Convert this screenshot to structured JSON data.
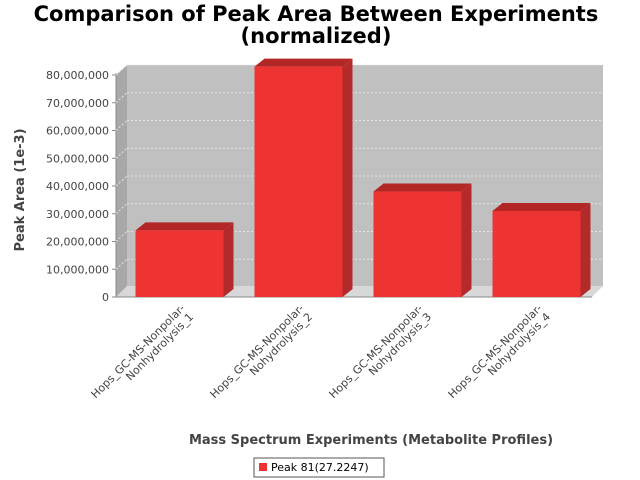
{
  "chart_data": {
    "type": "bar",
    "title": [
      "Comparison of Peak Area Between Experiments",
      "(normalized)"
    ],
    "xlabel": "Mass Spectrum Experiments (Metabolite Profiles)",
    "ylabel": "Peak Area (1e-3)",
    "categories": [
      [
        "Hops_GC-MS-Nonpolar-",
        "Nonhydrolysis_1"
      ],
      [
        "Hops_GC-MS-Nonpolar-",
        "Nohydrolysis_2"
      ],
      [
        "Hops_GC-MS-Nonpolar-",
        "Nohydrolysis_3"
      ],
      [
        "Hops_GC-MS-Nonpolar-",
        "Nohydrolysis_4"
      ]
    ],
    "series": [
      {
        "name": "Peak 81(27.2247)",
        "values": [
          24000000,
          83000000,
          38000000,
          31000000
        ]
      }
    ],
    "ylim": [
      0,
      80000000
    ],
    "yticks": [
      0,
      10000000,
      20000000,
      30000000,
      40000000,
      50000000,
      60000000,
      70000000,
      80000000
    ],
    "ytick_labels": [
      "0",
      "10,000,000",
      "20,000,000",
      "30,000,000",
      "40,000,000",
      "50,000,000",
      "60,000,000",
      "70,000,000",
      "80,000,000"
    ],
    "grid": true,
    "legend_position": "bottom",
    "colors": {
      "bar_front": "#ee3333",
      "bar_top": "#b32626",
      "bar_side": "#b32a2a",
      "plot_back": "#c0c0c0",
      "plot_floor": "#d8d8d8",
      "plot_side": "#a8a8a8",
      "grid": "#e6e6e6"
    }
  }
}
